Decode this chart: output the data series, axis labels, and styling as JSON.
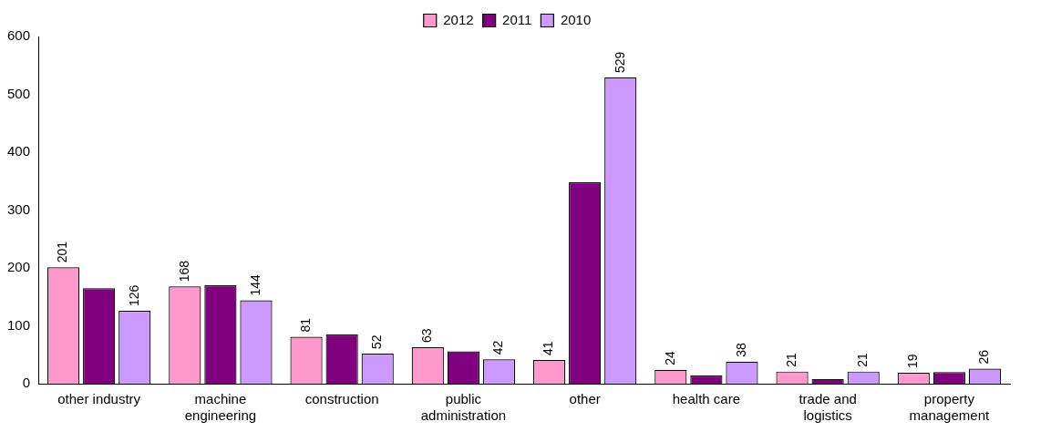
{
  "chart_data": {
    "type": "bar",
    "categories": [
      "other industry",
      "machine engineering",
      "construction",
      "public administration",
      "other",
      "health care",
      "trade and logistics",
      "property management"
    ],
    "series": [
      {
        "name": "2012",
        "color": "#ff99cc",
        "values": [
          201,
          168,
          81,
          63,
          41,
          24,
          21,
          19
        ],
        "value_labels": [
          "201",
          "168",
          "81",
          "63",
          "41",
          "24",
          "21",
          "19"
        ]
      },
      {
        "name": "2011",
        "color": "#800080",
        "values": [
          165,
          170,
          85,
          56,
          348,
          14,
          8,
          20
        ]
      },
      {
        "name": "2010",
        "color": "#cc99ff",
        "values": [
          126,
          144,
          52,
          42,
          529,
          38,
          21,
          26
        ],
        "value_labels": [
          "126",
          "144",
          "52",
          "42",
          "529",
          "38",
          "21",
          "26"
        ]
      }
    ],
    "ylim": [
      0,
      600
    ],
    "yticks": [
      0,
      100,
      200,
      300,
      400,
      500,
      600
    ],
    "grid": false,
    "legend": "top"
  }
}
